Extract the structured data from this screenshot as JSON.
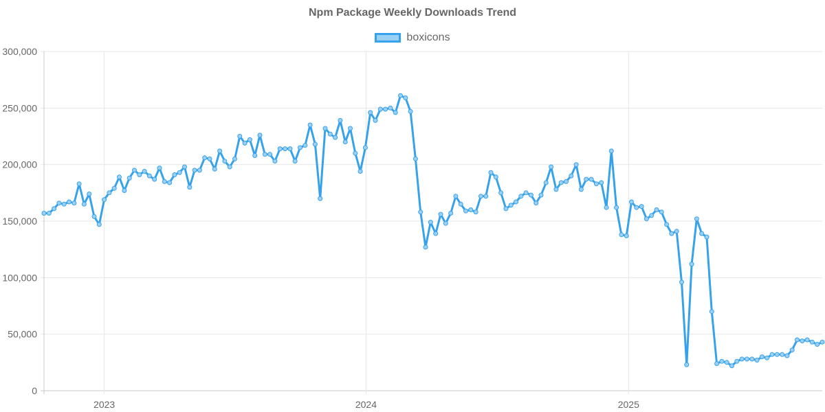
{
  "chart_data": {
    "type": "line",
    "title": "Npm Package Weekly Downloads Trend",
    "series": [
      {
        "name": "boxicons",
        "color": "#36a2eb",
        "fill": "#9ad0f5"
      }
    ],
    "ylim": [
      0,
      300000
    ],
    "y_ticks": [
      "0",
      "50,000",
      "100,000",
      "150,000",
      "200,000",
      "250,000",
      "300,000"
    ],
    "x_ticks": [
      {
        "label": "2023",
        "date": "2023-01-01"
      },
      {
        "label": "2024",
        "date": "2024-01-01"
      },
      {
        "label": "2025",
        "date": "2025-01-01"
      }
    ],
    "xlim": [
      "2022-10-09",
      "2025-09-21"
    ],
    "grid": true,
    "legend_position": "top",
    "points": [
      [
        "2022-10-09",
        157000
      ],
      [
        "2022-10-16",
        157000
      ],
      [
        "2022-10-23",
        161000
      ],
      [
        "2022-10-30",
        166000
      ],
      [
        "2022-11-06",
        165000
      ],
      [
        "2022-11-13",
        167000
      ],
      [
        "2022-11-20",
        166000
      ],
      [
        "2022-11-27",
        183000
      ],
      [
        "2022-12-04",
        165000
      ],
      [
        "2022-12-11",
        174000
      ],
      [
        "2022-12-18",
        154000
      ],
      [
        "2022-12-25",
        147000
      ],
      [
        "2023-01-01",
        169000
      ],
      [
        "2023-01-08",
        175000
      ],
      [
        "2023-01-15",
        179000
      ],
      [
        "2023-01-22",
        189000
      ],
      [
        "2023-01-29",
        177000
      ],
      [
        "2023-02-05",
        188000
      ],
      [
        "2023-02-12",
        195000
      ],
      [
        "2023-02-19",
        191000
      ],
      [
        "2023-02-26",
        194000
      ],
      [
        "2023-03-05",
        190000
      ],
      [
        "2023-03-12",
        187000
      ],
      [
        "2023-03-19",
        197000
      ],
      [
        "2023-03-26",
        185000
      ],
      [
        "2023-04-02",
        184000
      ],
      [
        "2023-04-09",
        191000
      ],
      [
        "2023-04-16",
        193000
      ],
      [
        "2023-04-23",
        198000
      ],
      [
        "2023-04-30",
        180000
      ],
      [
        "2023-05-07",
        195000
      ],
      [
        "2023-05-14",
        195000
      ],
      [
        "2023-05-21",
        206000
      ],
      [
        "2023-05-28",
        205000
      ],
      [
        "2023-06-04",
        196000
      ],
      [
        "2023-06-11",
        212000
      ],
      [
        "2023-06-18",
        203000
      ],
      [
        "2023-06-25",
        198000
      ],
      [
        "2023-07-02",
        205000
      ],
      [
        "2023-07-09",
        225000
      ],
      [
        "2023-07-16",
        219000
      ],
      [
        "2023-07-23",
        222000
      ],
      [
        "2023-07-30",
        208000
      ],
      [
        "2023-08-06",
        226000
      ],
      [
        "2023-08-13",
        209000
      ],
      [
        "2023-08-20",
        209000
      ],
      [
        "2023-08-27",
        203000
      ],
      [
        "2023-09-03",
        214000
      ],
      [
        "2023-09-10",
        214000
      ],
      [
        "2023-09-17",
        214000
      ],
      [
        "2023-09-24",
        203000
      ],
      [
        "2023-10-01",
        215000
      ],
      [
        "2023-10-08",
        217000
      ],
      [
        "2023-10-15",
        235000
      ],
      [
        "2023-10-22",
        218000
      ],
      [
        "2023-10-29",
        170000
      ],
      [
        "2023-11-05",
        232000
      ],
      [
        "2023-11-12",
        227000
      ],
      [
        "2023-11-19",
        224000
      ],
      [
        "2023-11-26",
        239000
      ],
      [
        "2023-12-03",
        220000
      ],
      [
        "2023-12-10",
        232000
      ],
      [
        "2023-12-17",
        210000
      ],
      [
        "2023-12-24",
        194000
      ],
      [
        "2023-12-31",
        215000
      ],
      [
        "2024-01-07",
        246000
      ],
      [
        "2024-01-14",
        239000
      ],
      [
        "2024-01-21",
        249000
      ],
      [
        "2024-01-28",
        249000
      ],
      [
        "2024-02-04",
        250000
      ],
      [
        "2024-02-11",
        246000
      ],
      [
        "2024-02-18",
        261000
      ],
      [
        "2024-02-25",
        259000
      ],
      [
        "2024-03-03",
        247000
      ],
      [
        "2024-03-10",
        205000
      ],
      [
        "2024-03-17",
        158000
      ],
      [
        "2024-03-24",
        127000
      ],
      [
        "2024-03-31",
        149000
      ],
      [
        "2024-04-07",
        139000
      ],
      [
        "2024-04-14",
        156000
      ],
      [
        "2024-04-21",
        148000
      ],
      [
        "2024-04-28",
        157000
      ],
      [
        "2024-05-05",
        172000
      ],
      [
        "2024-05-12",
        165000
      ],
      [
        "2024-05-19",
        159000
      ],
      [
        "2024-05-26",
        160000
      ],
      [
        "2024-06-02",
        158000
      ],
      [
        "2024-06-09",
        172000
      ],
      [
        "2024-06-16",
        172000
      ],
      [
        "2024-06-23",
        193000
      ],
      [
        "2024-06-30",
        189000
      ],
      [
        "2024-07-07",
        175000
      ],
      [
        "2024-07-14",
        161000
      ],
      [
        "2024-07-21",
        164000
      ],
      [
        "2024-07-28",
        167000
      ],
      [
        "2024-08-04",
        172000
      ],
      [
        "2024-08-11",
        175000
      ],
      [
        "2024-08-18",
        173000
      ],
      [
        "2024-08-25",
        166000
      ],
      [
        "2024-09-01",
        173000
      ],
      [
        "2024-09-08",
        184000
      ],
      [
        "2024-09-15",
        198000
      ],
      [
        "2024-09-22",
        178000
      ],
      [
        "2024-09-29",
        184000
      ],
      [
        "2024-10-06",
        185000
      ],
      [
        "2024-10-13",
        190000
      ],
      [
        "2024-10-20",
        200000
      ],
      [
        "2024-10-27",
        178000
      ],
      [
        "2024-11-03",
        187000
      ],
      [
        "2024-11-10",
        187000
      ],
      [
        "2024-11-17",
        183000
      ],
      [
        "2024-11-24",
        184000
      ],
      [
        "2024-12-01",
        162000
      ],
      [
        "2024-12-08",
        212000
      ],
      [
        "2024-12-15",
        162000
      ],
      [
        "2024-12-22",
        138000
      ],
      [
        "2024-12-29",
        137000
      ],
      [
        "2025-01-05",
        167000
      ],
      [
        "2025-01-12",
        162000
      ],
      [
        "2025-01-19",
        163000
      ],
      [
        "2025-01-26",
        152000
      ],
      [
        "2025-02-02",
        155000
      ],
      [
        "2025-02-09",
        160000
      ],
      [
        "2025-02-16",
        158000
      ],
      [
        "2025-02-23",
        147000
      ],
      [
        "2025-03-02",
        139000
      ],
      [
        "2025-03-09",
        141000
      ],
      [
        "2025-03-16",
        96000
      ],
      [
        "2025-03-23",
        23000
      ],
      [
        "2025-03-30",
        112000
      ],
      [
        "2025-04-06",
        152000
      ],
      [
        "2025-04-13",
        139000
      ],
      [
        "2025-04-20",
        136000
      ],
      [
        "2025-04-27",
        70000
      ],
      [
        "2025-05-04",
        24000
      ],
      [
        "2025-05-11",
        26000
      ],
      [
        "2025-05-18",
        25000
      ],
      [
        "2025-05-25",
        22000
      ],
      [
        "2025-06-01",
        26000
      ],
      [
        "2025-06-08",
        28000
      ],
      [
        "2025-06-15",
        28000
      ],
      [
        "2025-06-22",
        28000
      ],
      [
        "2025-06-29",
        27000
      ],
      [
        "2025-07-06",
        30000
      ],
      [
        "2025-07-13",
        29000
      ],
      [
        "2025-07-20",
        32000
      ],
      [
        "2025-07-27",
        32000
      ],
      [
        "2025-08-03",
        32000
      ],
      [
        "2025-08-10",
        31000
      ],
      [
        "2025-08-17",
        36000
      ],
      [
        "2025-08-24",
        45000
      ],
      [
        "2025-08-31",
        44000
      ],
      [
        "2025-09-07",
        45000
      ],
      [
        "2025-09-14",
        43000
      ],
      [
        "2025-09-21",
        41000
      ],
      [
        "2025-09-28",
        43000
      ]
    ]
  }
}
